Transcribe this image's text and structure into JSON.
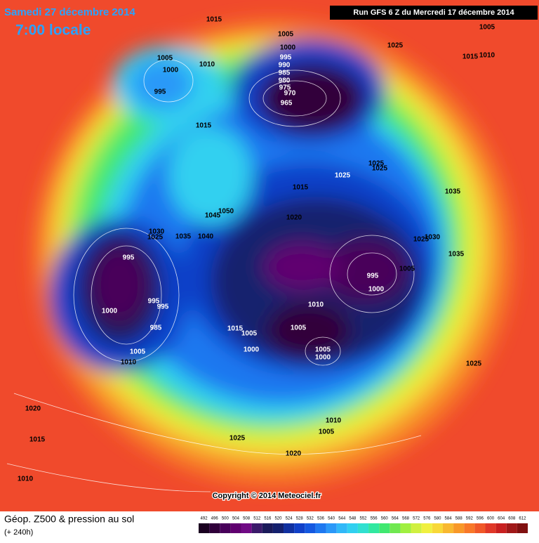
{
  "header": {
    "date": "Samedi 27 décembre 2014",
    "time": "7:00 locale",
    "run": "Run GFS 6 Z du Mercredi 17 décembre 2014"
  },
  "isobar_labels": [
    1015,
    1005,
    1000,
    995,
    990,
    985,
    980,
    975,
    970,
    965,
    1025,
    1005,
    1015,
    1010,
    1005,
    1000,
    1010,
    995,
    1015,
    1025,
    1025,
    1025,
    1015,
    1035,
    1020,
    1050,
    1045,
    1030,
    1025,
    1035,
    1040,
    1030,
    1025,
    1035,
    995,
    1005,
    995,
    1000,
    1010,
    995,
    995,
    1000,
    985,
    1015,
    1005,
    1005,
    1000,
    1005,
    1000,
    1005,
    1010,
    1025,
    1020,
    1015,
    1010,
    1005,
    1025,
    1020,
    1010
  ],
  "copyright": "Copyright © 2014 Meteociel.fr",
  "legend": {
    "title": "Géop. Z500 & pression au sol",
    "subtitle": "(+ 240h)",
    "scale": [
      492,
      496,
      500,
      504,
      508,
      512,
      516,
      520,
      524,
      528,
      532,
      536,
      540,
      544,
      548,
      552,
      556,
      560,
      564,
      568,
      572,
      576,
      580,
      584,
      588,
      592,
      596,
      600,
      604,
      608,
      612
    ],
    "colors": [
      "#1a0020",
      "#30003a",
      "#48005a",
      "#600070",
      "#700a85",
      "#3a1a6a",
      "#1a1a5a",
      "#14206e",
      "#1030a0",
      "#1040c8",
      "#1458e0",
      "#1e78f0",
      "#2a98f8",
      "#30b8f8",
      "#30d0f0",
      "#30e0d0",
      "#30e8a0",
      "#40e870",
      "#70e850",
      "#a0f040",
      "#d0f040",
      "#f0f040",
      "#f8d838",
      "#f8b830",
      "#f89828",
      "#f87828",
      "#f05828",
      "#e03828",
      "#c82020",
      "#a01818",
      "#801010"
    ]
  }
}
